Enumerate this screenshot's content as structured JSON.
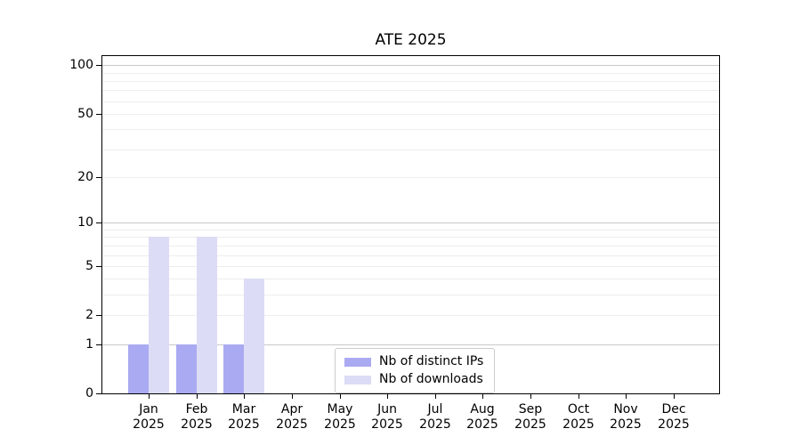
{
  "figure": {
    "background": "#ffffff"
  },
  "chart_data": {
    "type": "bar",
    "title": "ATE 2025",
    "categories": [
      "Jan",
      "Feb",
      "Mar",
      "Apr",
      "May",
      "Jun",
      "Jul",
      "Aug",
      "Sep",
      "Oct",
      "Nov",
      "Dec"
    ],
    "year": "2025",
    "series": [
      {
        "name": "Nb of distinct IPs",
        "color": "#aaaaf2",
        "values": [
          1,
          1,
          1,
          0,
          0,
          0,
          0,
          0,
          0,
          0,
          0,
          0
        ]
      },
      {
        "name": "Nb of downloads",
        "color": "#dcdcf6",
        "values": [
          8,
          8,
          4,
          0,
          0,
          0,
          0,
          0,
          0,
          0,
          0,
          0
        ]
      }
    ],
    "xlabel": "",
    "ylabel": "",
    "yscale": "log10(1+x)",
    "ylim": [
      0,
      114
    ],
    "yticks": [
      0,
      1,
      2,
      5,
      10,
      20,
      50,
      100
    ],
    "gridline_values": [
      1,
      2,
      3,
      4,
      5,
      6,
      7,
      8,
      9,
      10,
      20,
      30,
      40,
      50,
      60,
      70,
      80,
      90,
      100
    ],
    "emphasized_gridlines": [
      1,
      10,
      100
    ],
    "grid": "horizontal",
    "legend_position": "lower center",
    "colors": {
      "spine": "#000000",
      "grid_minor": "#ededed",
      "grid_major": "#c9c9c9",
      "text": "#000000"
    }
  }
}
